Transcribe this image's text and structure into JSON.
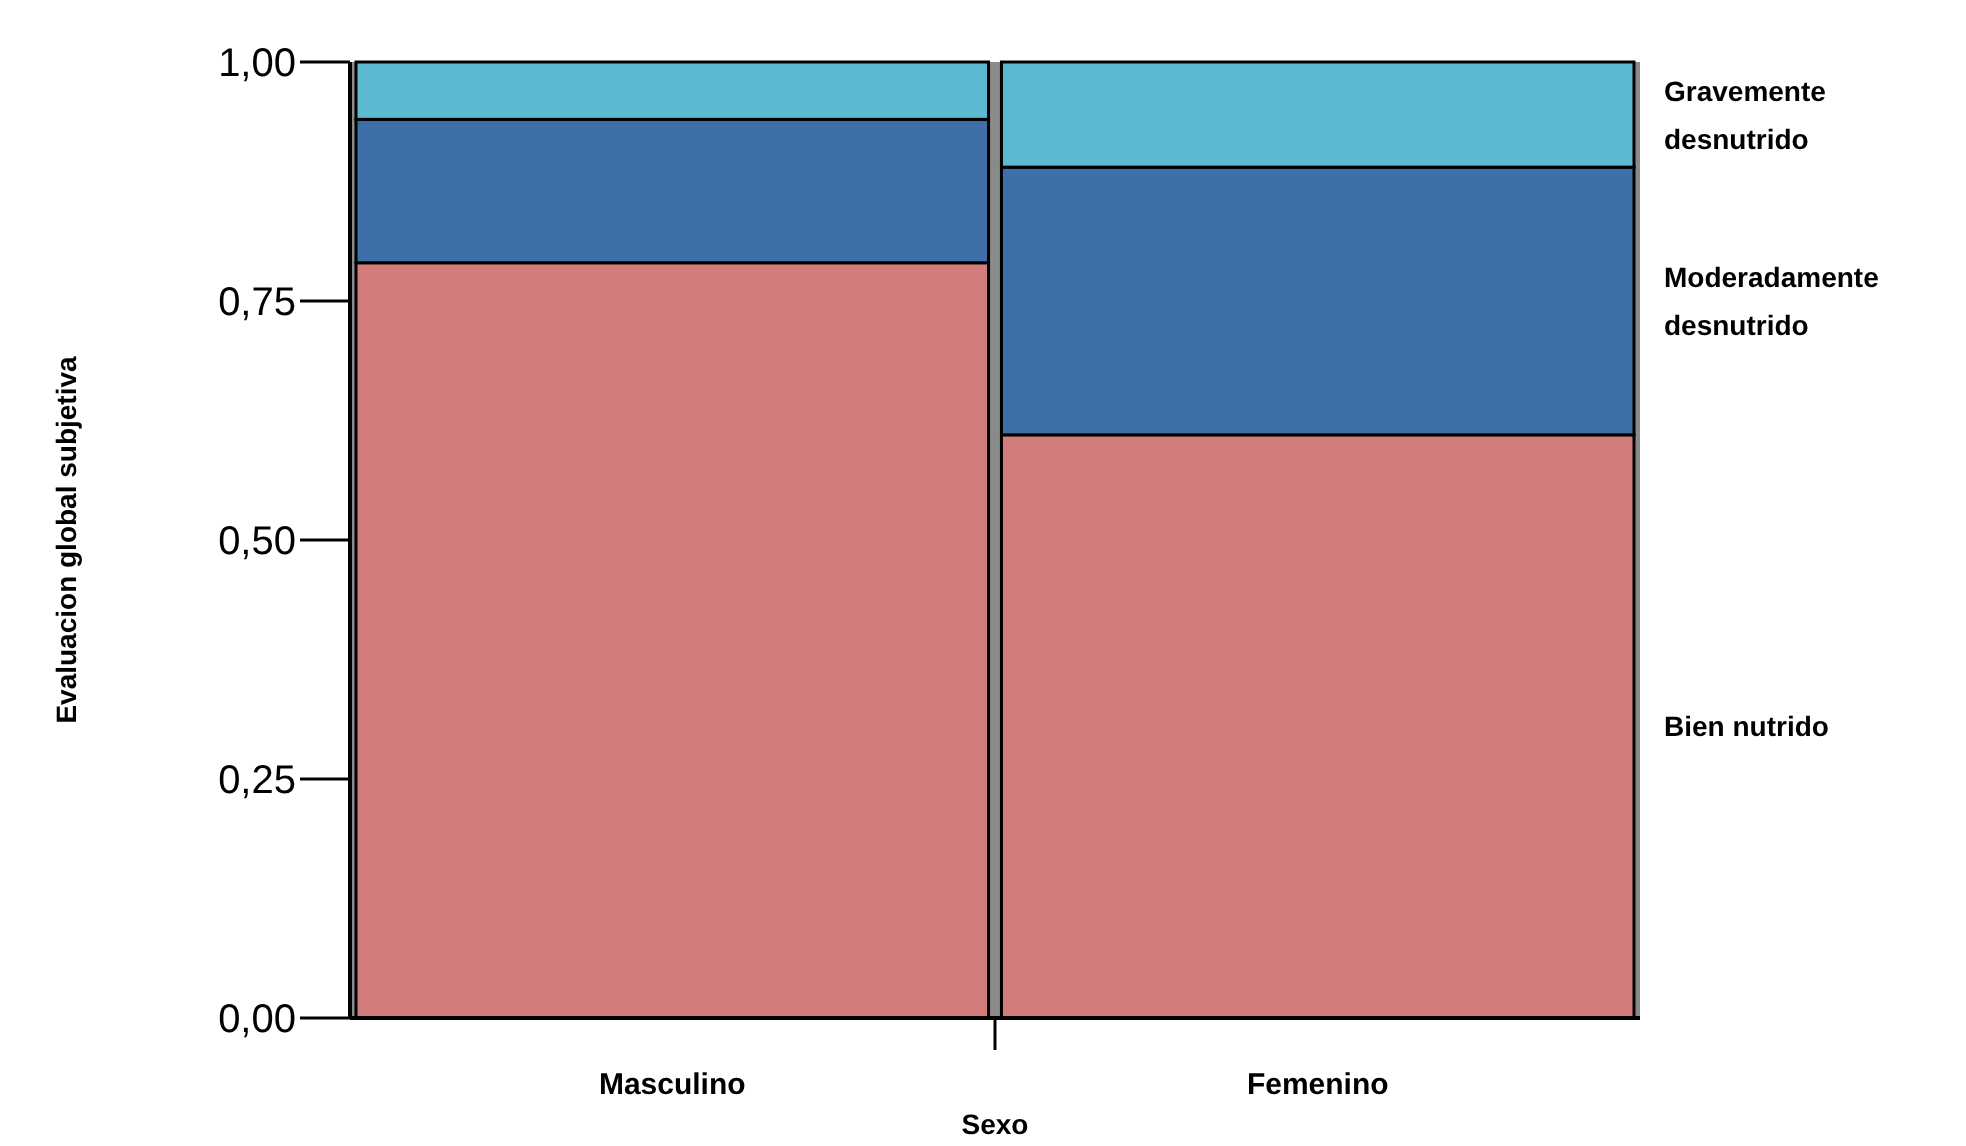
{
  "chart_data": {
    "type": "bar",
    "stacked": true,
    "xlabel": "Sexo",
    "ylabel": "Evaluacion global subjetiva",
    "categories": [
      "Masculino",
      "Femenino"
    ],
    "ylim": [
      0,
      1
    ],
    "yticks": [
      {
        "value": 0,
        "label": "0,00"
      },
      {
        "value": 0.25,
        "label": "0,25"
      },
      {
        "value": 0.5,
        "label": "0,50"
      },
      {
        "value": 0.75,
        "label": "0,75"
      },
      {
        "value": 1,
        "label": "1,00"
      }
    ],
    "grid": false,
    "series": [
      {
        "name": "Bien nutrido",
        "color": "#d27d7b",
        "values": [
          0.79,
          0.61
        ]
      },
      {
        "name": "Moderadamente desnutrido",
        "color": "#3f6fa8",
        "values": [
          0.15,
          0.28
        ]
      },
      {
        "name": "Gravemente desnutrido",
        "color": "#5cb9d0",
        "values": [
          0.06,
          0.11
        ]
      }
    ]
  }
}
